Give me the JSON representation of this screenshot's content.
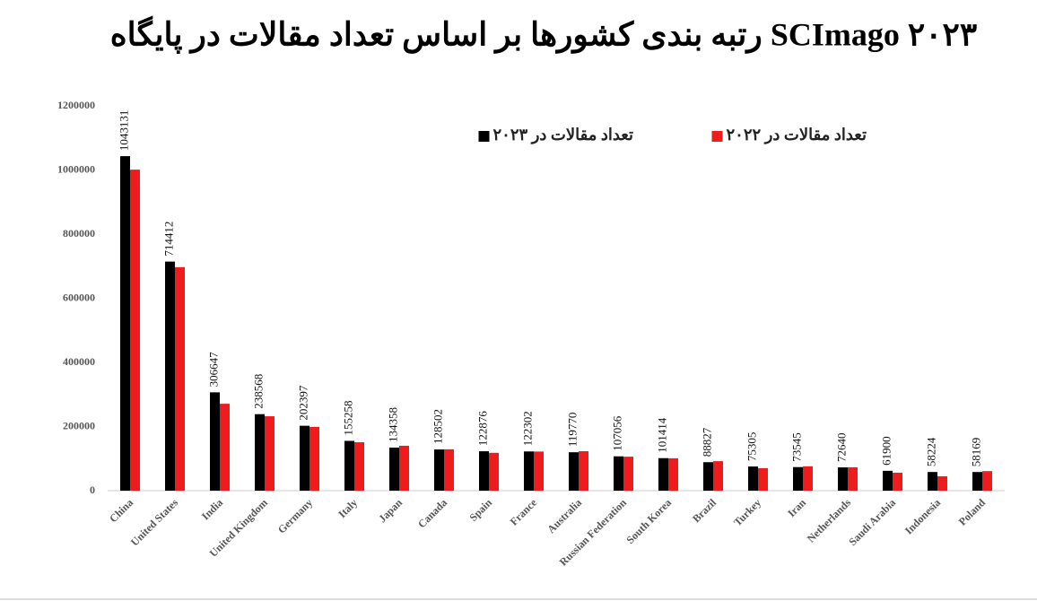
{
  "chart_data": {
    "type": "bar",
    "title": "رتبه بندی کشورها بر اساس تعداد مقالات در پایگاه SCImago ۲۰۲۳",
    "categories": [
      "China",
      "United States",
      "India",
      "United Kingdom",
      "Germany",
      "Italy",
      "Japan",
      "Canada",
      "Spain",
      "France",
      "Australia",
      "Russian Federation",
      "South Korea",
      "Brazil",
      "Turkey",
      "Iran",
      "Netherlands",
      "Saudi Arabia",
      "Indonesia",
      "Poland"
    ],
    "series": [
      {
        "name": "تعداد مقالات در ۲۰۲۳",
        "color": "#000000",
        "values": [
          1043131,
          714412,
          306647,
          238568,
          202397,
          155258,
          134358,
          128502,
          122876,
          122302,
          119770,
          107056,
          101414,
          88827,
          75305,
          73545,
          72640,
          61900,
          58224,
          58169
        ]
      },
      {
        "name": "تعداد مقالات در ۲۰۲۲",
        "color": "#ee1c1c",
        "values": [
          1001000,
          697000,
          271000,
          232000,
          199000,
          151000,
          140000,
          129000,
          118000,
          122000,
          123000,
          106000,
          101000,
          92000,
          70000,
          76000,
          73000,
          56000,
          45000,
          61000
        ]
      }
    ],
    "ylim": [
      0,
      1200000
    ],
    "yticks": [
      0,
      200000,
      400000,
      600000,
      800000,
      1000000,
      1200000
    ],
    "grid": false,
    "value_labels_series": 0
  }
}
